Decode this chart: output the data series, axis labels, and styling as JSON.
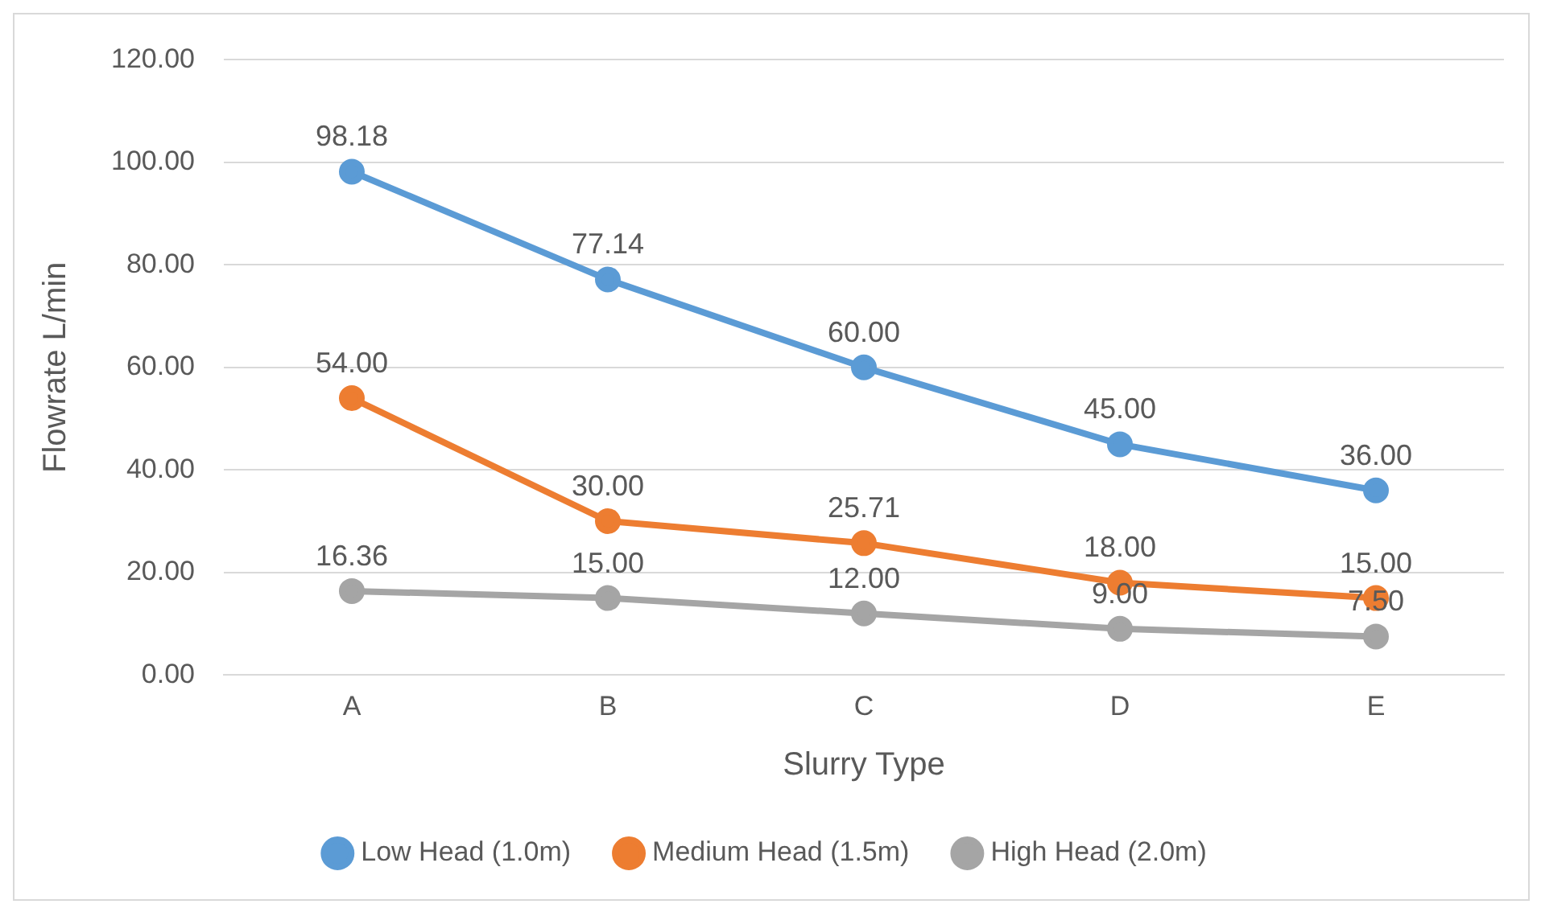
{
  "chart_data": {
    "type": "line",
    "xlabel": "Slurry Type",
    "ylabel": "Flowrate L/min",
    "categories": [
      "A",
      "B",
      "C",
      "D",
      "E"
    ],
    "series": [
      {
        "name": "Low Head (1.0m)",
        "color": "#5b9bd5",
        "values": [
          98.18,
          77.14,
          60,
          45,
          36
        ],
        "value_labels": [
          "98.18",
          "77.14",
          "60.00",
          "45.00",
          "36.00"
        ]
      },
      {
        "name": "Medium Head (1.5m)",
        "color": "#ed7d31",
        "values": [
          54,
          30,
          25.71,
          18,
          15
        ],
        "value_labels": [
          "54.00",
          "30.00",
          "25.71",
          "18.00",
          "15.00"
        ]
      },
      {
        "name": "High Head (2.0m)",
        "color": "#a5a5a5",
        "values": [
          16.36,
          15,
          12,
          9,
          7.5
        ],
        "value_labels": [
          "16.36",
          "15.00",
          "12.00",
          "9.00",
          "7.50"
        ]
      }
    ],
    "ylim": [
      0,
      120
    ],
    "yticks": [
      {
        "value": 0,
        "label": "0.00"
      },
      {
        "value": 20,
        "label": "20.00"
      },
      {
        "value": 40,
        "label": "40.00"
      },
      {
        "value": 60,
        "label": "60.00"
      },
      {
        "value": 80,
        "label": "80.00"
      },
      {
        "value": 100,
        "label": "100.00"
      },
      {
        "value": 120,
        "label": "120.00"
      }
    ],
    "grid": "y",
    "legend": "bottom",
    "marker": "circle",
    "line_style": "solid"
  }
}
